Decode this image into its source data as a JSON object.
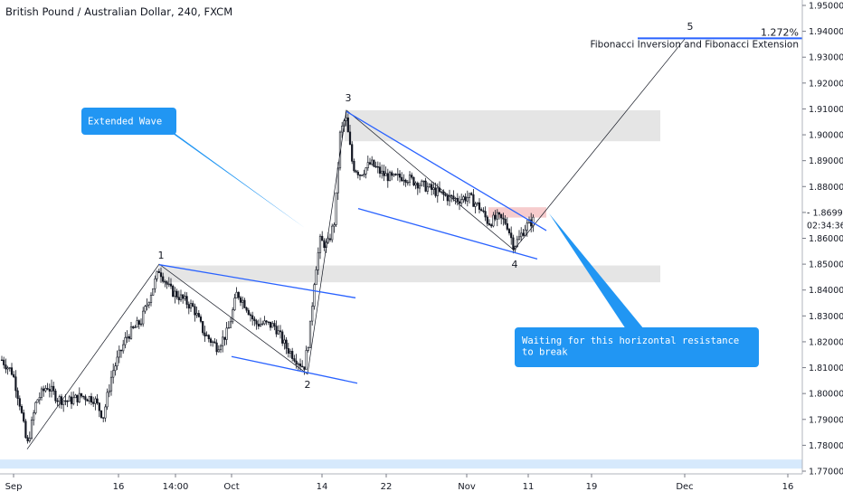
{
  "header": {
    "title": "British Pound / Australian Dollar, 240, FXCM"
  },
  "chart_data": {
    "type": "candlestick",
    "symbol": "British Pound / Australian Dollar",
    "interval": "240",
    "source": "FXCM",
    "y_axis": {
      "range": [
        1.77,
        1.95
      ],
      "ticks": [
        "1.95000",
        "1.94000",
        "1.93000",
        "1.92000",
        "1.91000",
        "1.90000",
        "1.89000",
        "1.88000",
        "1.87000",
        "1.86000",
        "1.85000",
        "1.84000",
        "1.83000",
        "1.82000",
        "1.81000",
        "1.80000",
        "1.79000",
        "1.78000",
        "1.77000"
      ],
      "hidden_ticks": [
        "1.87000"
      ]
    },
    "x_axis": {
      "ticks": [
        "Sep",
        "16",
        "14:00",
        "Oct",
        "14",
        "22",
        "Nov",
        "11",
        "19",
        "Dec",
        "16"
      ]
    },
    "price_label": {
      "value": "1.86999",
      "time": "02:34:36"
    },
    "colors": {
      "candle": "#131722",
      "trendline": "#2962ff",
      "wave_line": "#131722",
      "zone": "#e0e0e0",
      "resistance": "#f5c6c8",
      "support_band": "#cfe5fb",
      "callout": "#2196f3"
    },
    "wave_labels": [
      {
        "label": "1",
        "x": 0.3,
        "y": 1.85
      },
      {
        "label": "2",
        "x": 1.55,
        "y": 1.808
      },
      {
        "label": "3",
        "x": 1.78,
        "y": 1.91
      },
      {
        "label": "4",
        "x": 2.62,
        "y": 1.855
      },
      {
        "label": "5",
        "x": 3.0,
        "y": 1.94
      }
    ],
    "wave_path": [
      {
        "wave": "0",
        "price": 1.7785
      },
      {
        "wave": "1",
        "price": 1.85
      },
      {
        "wave": "2",
        "price": 1.8075
      },
      {
        "wave": "3",
        "price": 1.9095
      },
      {
        "wave": "4",
        "price": 1.8555
      },
      {
        "wave": "5",
        "price": 1.937
      }
    ],
    "zones": [
      {
        "name": "upper-supply-zone",
        "from": 1.8975,
        "to": 1.9095
      },
      {
        "name": "middle-demand-zone",
        "from": 1.843,
        "to": 1.8495
      },
      {
        "name": "resistance-zone",
        "from": 1.868,
        "to": 1.872
      },
      {
        "name": "bottom-support-band",
        "from": 1.771,
        "to": 1.7745
      }
    ],
    "fib_level": {
      "value": "1.272%",
      "label": "Fibonacci Inversion and Fibonacci Extension",
      "price": 1.9373
    }
  },
  "callouts": {
    "extended_wave": "Extended Wave",
    "waiting": "Waiting for this horizontal resistance\nto break"
  }
}
